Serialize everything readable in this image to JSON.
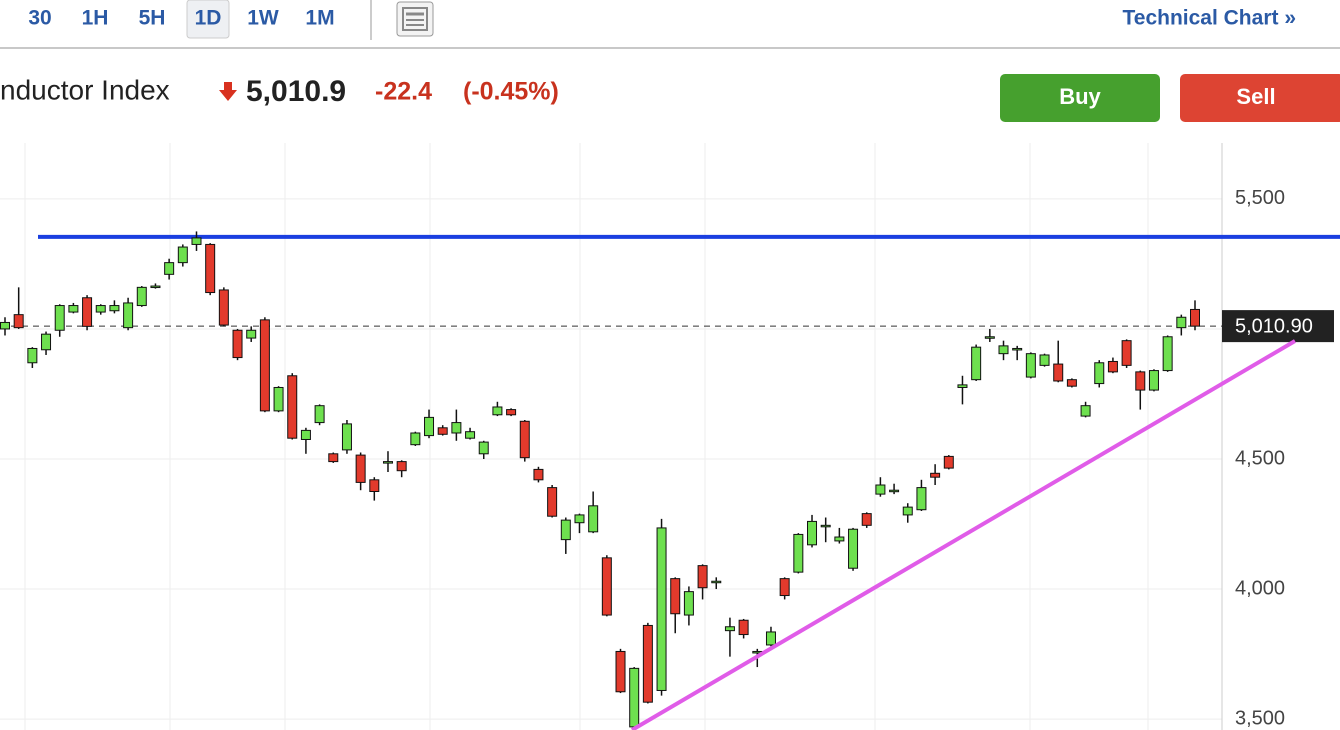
{
  "toolbar": {
    "intervals": [
      "30",
      "1H",
      "5H",
      "1D",
      "1W",
      "1M"
    ],
    "selected": "1D",
    "link": "Technical Chart »"
  },
  "quote": {
    "name": "nductor Index",
    "price": "5,010.9",
    "change": "-22.4",
    "change_percent": "(-0.45%)"
  },
  "actions": [
    "Buy",
    "Sell"
  ],
  "chart_data": {
    "type": "candlestick",
    "up_color": "#6ee04f",
    "down_color": "#e23a2c",
    "grid": true,
    "ylim": [
      3458,
      5715
    ],
    "yticks": [
      {
        "value": 3500,
        "label": "3,500"
      },
      {
        "value": 4000,
        "label": "4,000"
      },
      {
        "value": 4500,
        "label": "4,500"
      },
      {
        "value": 5000,
        "label": "5,000"
      },
      {
        "value": 5500,
        "label": "5,500"
      }
    ],
    "last_price": {
      "value": 5010.9,
      "label": "5,010.90"
    },
    "levels": [
      {
        "value": 5354,
        "color": "#1a3fe0"
      }
    ],
    "series": {
      "open": [
        5000,
        5055,
        4870,
        4920,
        4995,
        5065,
        5120,
        5065,
        5070,
        5005,
        5090,
        5160,
        5210,
        5255,
        5325,
        5325,
        5150,
        4995,
        4965,
        5035,
        4685,
        4820,
        4575,
        4640,
        4520,
        4535,
        4515,
        4420,
        4485,
        4490,
        4555,
        4590,
        4620,
        4600,
        4580,
        4520,
        4670,
        4690,
        4645,
        4460,
        4390,
        4190,
        4255,
        4220,
        4120,
        3760,
        3470,
        3860,
        3610,
        4040,
        3900,
        4090,
        4025,
        3840,
        3880,
        3755,
        3785,
        4040,
        4065,
        4170,
        4240,
        4185,
        4080,
        4290,
        4365,
        4375,
        4285,
        4305,
        4445,
        4510,
        4775,
        4805,
        4965,
        4905,
        4920,
        4815,
        4860,
        4865,
        4805,
        4665,
        4790,
        4875,
        4955,
        4835,
        4765,
        4840,
        5005,
        5075
      ],
      "high": [
        5045,
        5160,
        4930,
        4990,
        5095,
        5100,
        5130,
        5095,
        5110,
        5120,
        5165,
        5175,
        5270,
        5325,
        5375,
        5330,
        5160,
        5000,
        5010,
        5045,
        4780,
        4830,
        4620,
        4710,
        4525,
        4650,
        4525,
        4430,
        4530,
        4495,
        4605,
        4690,
        4630,
        4690,
        4620,
        4570,
        4720,
        4695,
        4650,
        4470,
        4400,
        4275,
        4290,
        4375,
        4130,
        3770,
        3700,
        3870,
        4270,
        4045,
        4010,
        4095,
        4045,
        3890,
        3885,
        3770,
        3855,
        4045,
        4215,
        4285,
        4275,
        4235,
        4235,
        4295,
        4430,
        4405,
        4330,
        4420,
        4480,
        4515,
        4820,
        4940,
        5000,
        4955,
        4935,
        4910,
        4905,
        4955,
        4810,
        4720,
        4880,
        4890,
        4960,
        4840,
        4845,
        4975,
        5055,
        5110
      ],
      "low": [
        4975,
        5000,
        4850,
        4900,
        4970,
        5060,
        4995,
        5055,
        5060,
        4995,
        5085,
        5155,
        5190,
        5240,
        5300,
        5130,
        5010,
        4880,
        4950,
        4680,
        4680,
        4575,
        4520,
        4630,
        4485,
        4520,
        4380,
        4340,
        4450,
        4430,
        4550,
        4580,
        4590,
        4570,
        4575,
        4500,
        4665,
        4665,
        4490,
        4410,
        4275,
        4135,
        4215,
        4215,
        3895,
        3600,
        3460,
        3560,
        3590,
        3830,
        3860,
        3960,
        4000,
        3740,
        3810,
        3700,
        3780,
        3960,
        4060,
        4160,
        4180,
        4175,
        4070,
        4235,
        4355,
        4365,
        4255,
        4300,
        4400,
        4460,
        4710,
        4800,
        4950,
        4880,
        4880,
        4810,
        4855,
        4795,
        4775,
        4660,
        4775,
        4830,
        4850,
        4690,
        4760,
        4835,
        4975,
        4995
      ],
      "close": [
        5025,
        5005,
        4925,
        4980,
        5090,
        5090,
        5010,
        5090,
        5090,
        5100,
        5160,
        5165,
        5255,
        5315,
        5350,
        5140,
        5015,
        4890,
        4995,
        4685,
        4775,
        4580,
        4610,
        4705,
        4490,
        4635,
        4410,
        4375,
        4490,
        4455,
        4600,
        4660,
        4595,
        4640,
        4605,
        4565,
        4700,
        4670,
        4505,
        4420,
        4280,
        4265,
        4285,
        4320,
        3900,
        3605,
        3695,
        3565,
        4235,
        3905,
        3990,
        4005,
        4030,
        3855,
        3825,
        3760,
        3835,
        3975,
        4210,
        4260,
        4245,
        4200,
        4230,
        4245,
        4400,
        4380,
        4315,
        4390,
        4430,
        4465,
        4785,
        4930,
        4970,
        4935,
        4925,
        4905,
        4900,
        4800,
        4780,
        4705,
        4870,
        4835,
        4860,
        4765,
        4840,
        4970,
        5045,
        5010.9
      ]
    }
  }
}
